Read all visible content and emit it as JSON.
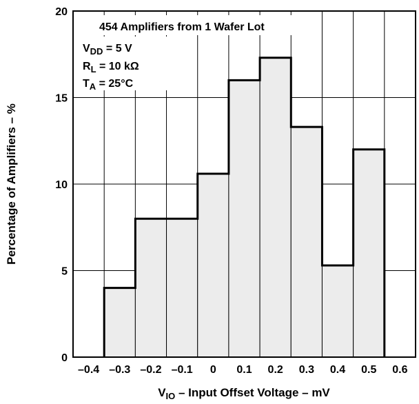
{
  "chart_data": {
    "type": "bar",
    "title": "454 Amplifiers from 1 Wafer Lot",
    "xlabel": {
      "sym": "V",
      "sub": "IO",
      "rest": " – Input Offset Voltage – mV"
    },
    "ylabel": "Percentage of Amplifiers – %",
    "xlim": [
      -0.45,
      0.65
    ],
    "ylim": [
      0,
      20
    ],
    "x_ticks": [
      "–0.4",
      "–0.3",
      "–0.2",
      "–0.1",
      "0",
      "0.1",
      "0.2",
      "0.3",
      "0.4",
      "0.5",
      "0.6"
    ],
    "x_tick_values": [
      -0.4,
      -0.3,
      -0.2,
      -0.1,
      0,
      0.1,
      0.2,
      0.3,
      0.4,
      0.5,
      0.6
    ],
    "y_ticks": [
      "0",
      "5",
      "10",
      "15",
      "20"
    ],
    "y_tick_values": [
      0,
      5,
      10,
      15,
      20
    ],
    "bin_edges": [
      -0.35,
      -0.25,
      -0.15,
      -0.05,
      0.05,
      0.15,
      0.25,
      0.35,
      0.45,
      0.55
    ],
    "values": [
      4,
      8,
      8,
      10.6,
      16,
      17.3,
      13.3,
      5.3,
      12
    ],
    "grid": true,
    "annotations": [
      {
        "sym": "V",
        "sub": "DD",
        "rest": " = 5 V"
      },
      {
        "sym": "R",
        "sub": "L",
        "rest": " = 10 kΩ"
      },
      {
        "sym": "T",
        "sub": "A",
        "rest": " = 25°C"
      }
    ]
  }
}
